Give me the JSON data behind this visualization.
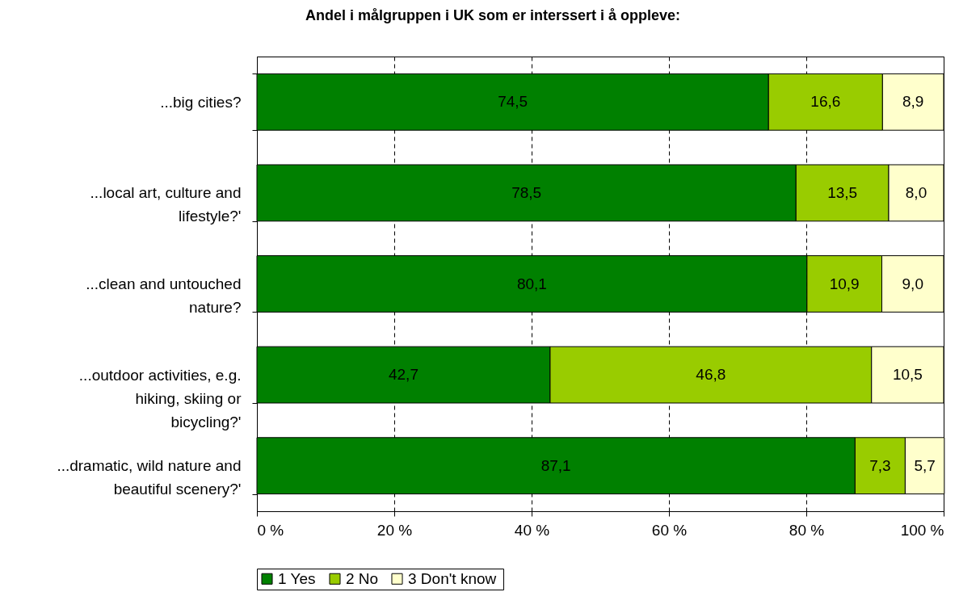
{
  "chart_data": {
    "type": "bar",
    "orientation": "horizontal",
    "stacked": true,
    "title": "Andel i målgruppen i UK som er interssert i å oppleve:",
    "categories": [
      "...big cities?",
      "...local art, culture and lifestyle?'",
      "...clean and untouched nature?",
      "...outdoor activities, e.g. hiking, skiing or bicycling?'",
      "...dramatic, wild nature and beautiful scenery?'"
    ],
    "series": [
      {
        "name": "1  Yes",
        "color": "#008000",
        "values": [
          74.5,
          78.5,
          80.1,
          42.7,
          87.1
        ],
        "value_labels": [
          "74,5",
          "78,5",
          "80,1",
          "42,7",
          "87,1"
        ]
      },
      {
        "name": "2  No",
        "color": "#99cc00",
        "values": [
          16.6,
          13.5,
          10.9,
          46.8,
          7.3
        ],
        "value_labels": [
          "16,6",
          "13,5",
          "10,9",
          "46,8",
          "7,3"
        ]
      },
      {
        "name": "3  Don't know",
        "color": "#ffffcc",
        "values": [
          8.9,
          8.0,
          9.0,
          10.5,
          5.7
        ],
        "value_labels": [
          "8,9",
          "8,0",
          "9,0",
          "10,5",
          "5,7"
        ]
      }
    ],
    "xlim": [
      0,
      100
    ],
    "xticks": [
      {
        "value": 0,
        "label": "0 %"
      },
      {
        "value": 20,
        "label": "20 %"
      },
      {
        "value": 40,
        "label": "40 %"
      },
      {
        "value": 60,
        "label": "60 %"
      },
      {
        "value": 80,
        "label": "80 %"
      },
      {
        "value": 100,
        "label": "100 %"
      }
    ],
    "grid": "x",
    "legend": "bottom"
  }
}
